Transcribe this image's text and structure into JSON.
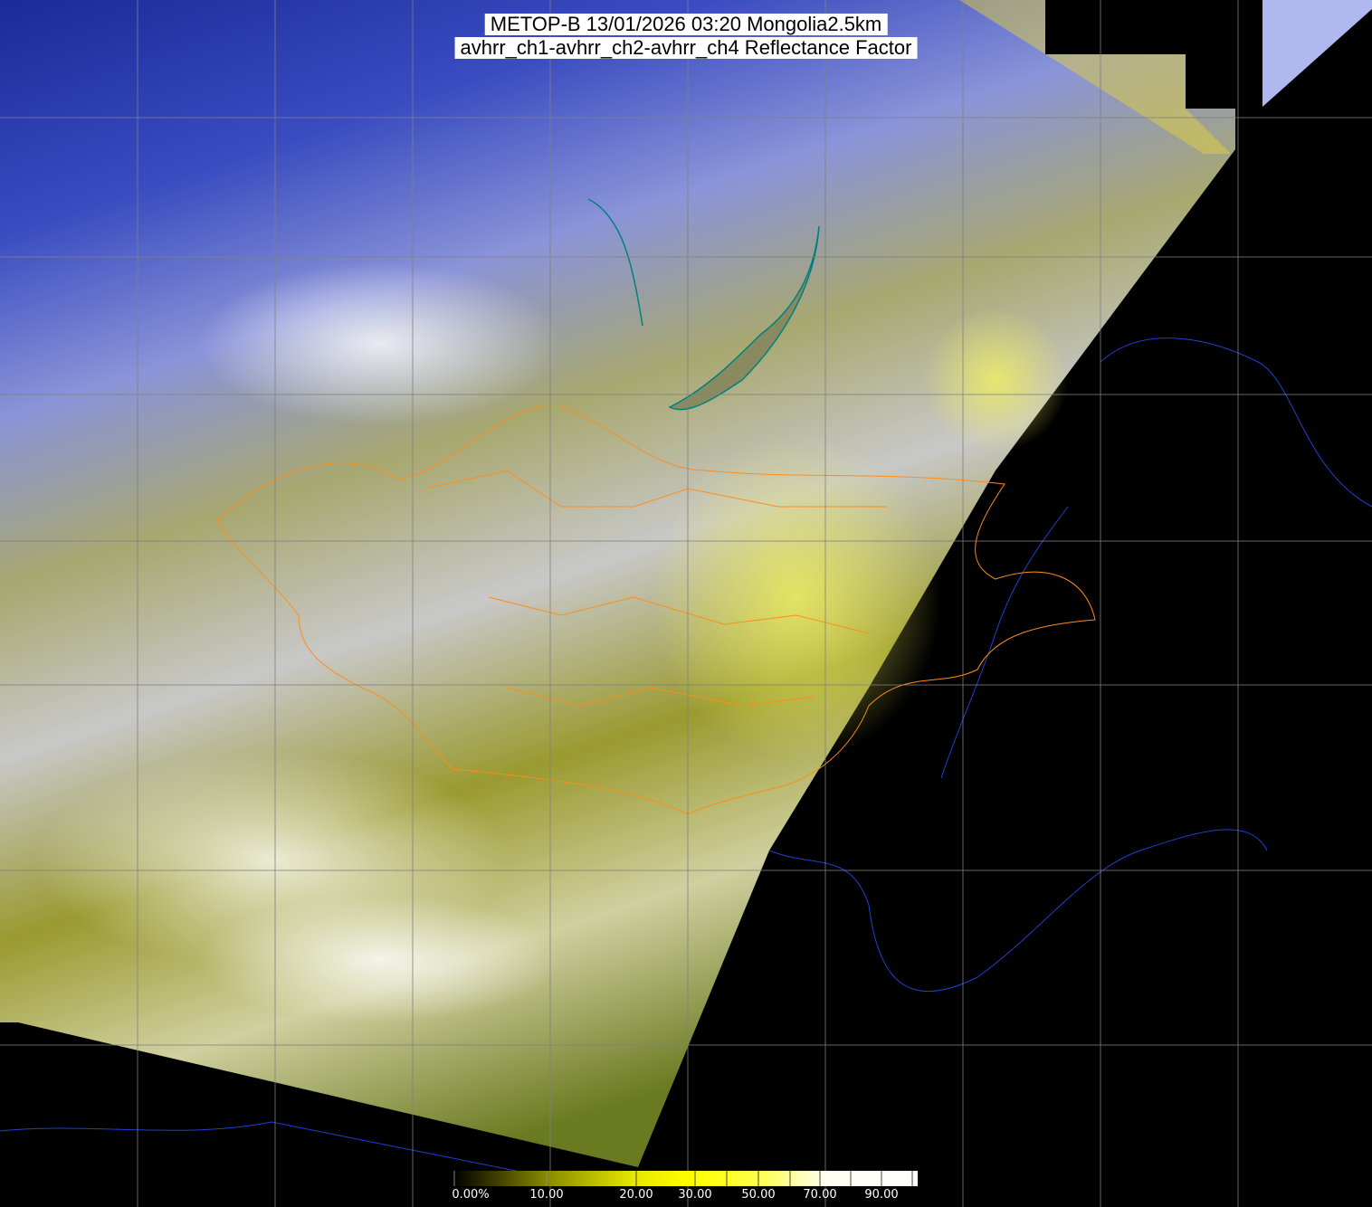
{
  "header": {
    "title_line1": "METOP-B 13/01/2026 03:20 Mongolia2.5km",
    "title_line2": "avhrr_ch1-avhrr_ch2-avhrr_ch4 Reflectance Factor"
  },
  "map": {
    "background_color": "#000000",
    "grid_color": "#808080",
    "coastline_color": "#2040d0",
    "border_color": "#ff8c1a",
    "lake_color": "#008080"
  },
  "colorbar": {
    "unit": "%",
    "range": [
      0,
      100
    ],
    "ticks": [
      {
        "value": 0,
        "label": "0.00%"
      },
      {
        "value": 10,
        "label": "10.00"
      },
      {
        "value": 20,
        "label": "20.00"
      },
      {
        "value": 30,
        "label": "30.00"
      },
      {
        "value": 50,
        "label": "50.00"
      },
      {
        "value": 70,
        "label": "70.00"
      },
      {
        "value": 90,
        "label": "90.00"
      }
    ],
    "colors": [
      "#000000",
      "#8a8a00",
      "#e0e000",
      "#ffff00",
      "#ffff60",
      "#fffff0",
      "#ffffff"
    ]
  }
}
